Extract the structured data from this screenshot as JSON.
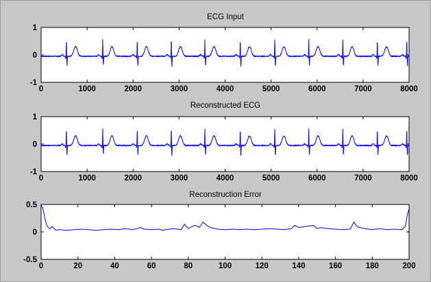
{
  "chart_data": [
    {
      "type": "line",
      "title": "ECG Input",
      "xlabel": "",
      "ylabel": "",
      "xlim": [
        0,
        8000
      ],
      "ylim": [
        -1,
        1
      ],
      "xticks": [
        "0",
        "1000",
        "2000",
        "3000",
        "4000",
        "5000",
        "6000",
        "7000",
        "8000"
      ],
      "yticks": [
        "1",
        "0",
        "-1"
      ],
      "grid": false,
      "line_color": "#0000ff",
      "series": [
        {
          "beat_x": [
            550,
            1340,
            2090,
            2830,
            3560,
            4330,
            5080,
            5820,
            6560,
            7310,
            7950
          ],
          "r_peak": 0.55,
          "s_trough": -0.4,
          "t_wave": 0.3,
          "baseline": -0.05
        }
      ]
    },
    {
      "type": "line",
      "title": "Reconstructed ECG",
      "xlabel": "",
      "ylabel": "",
      "xlim": [
        0,
        8000
      ],
      "ylim": [
        -1,
        1
      ],
      "xticks": [
        "0",
        "1000",
        "2000",
        "3000",
        "4000",
        "5000",
        "6000",
        "7000",
        "8000"
      ],
      "yticks": [
        "1",
        "0",
        "-1"
      ],
      "grid": false,
      "line_color": "#0000ff",
      "series": [
        {
          "beat_x": [
            550,
            1340,
            2090,
            2830,
            3560,
            4330,
            5080,
            5820,
            6560,
            7310,
            7950
          ],
          "r_peak": 0.55,
          "s_trough": -0.4,
          "t_wave": 0.3,
          "baseline": -0.05
        }
      ]
    },
    {
      "type": "line",
      "title": "Reconstruction Error",
      "xlabel": "",
      "ylabel": "",
      "xlim": [
        0,
        200
      ],
      "ylim": [
        -0.5,
        0.5
      ],
      "xticks": [
        "0",
        "20",
        "40",
        "60",
        "80",
        "100",
        "120",
        "140",
        "160",
        "180",
        "200"
      ],
      "yticks": [
        "0.5",
        "0",
        "-0.5"
      ],
      "grid": false,
      "line_color": "#0000ff",
      "series": [
        {
          "x": [
            0,
            1,
            2,
            3,
            4,
            5,
            6,
            8,
            10,
            14,
            18,
            22,
            26,
            30,
            34,
            38,
            42,
            46,
            50,
            54,
            56,
            60,
            64,
            66,
            68,
            72,
            76,
            78,
            80,
            82,
            84,
            86,
            88,
            90,
            92,
            96,
            100,
            104,
            108,
            112,
            116,
            120,
            124,
            128,
            132,
            136,
            138,
            140,
            144,
            148,
            150,
            152,
            156,
            160,
            164,
            168,
            170,
            172,
            176,
            180,
            184,
            188,
            192,
            196,
            198,
            199,
            200
          ],
          "y": [
            0.5,
            0.42,
            0.25,
            0.12,
            0.08,
            0.06,
            0.1,
            0.03,
            0.04,
            0.03,
            0.04,
            0.05,
            0.04,
            0.03,
            0.04,
            0.05,
            0.04,
            0.06,
            0.04,
            0.08,
            0.05,
            0.04,
            0.05,
            0.03,
            0.04,
            0.06,
            0.04,
            0.14,
            0.06,
            0.1,
            0.12,
            0.08,
            0.18,
            0.12,
            0.08,
            0.05,
            0.04,
            0.05,
            0.04,
            0.05,
            0.04,
            0.05,
            0.06,
            0.05,
            0.04,
            0.06,
            0.12,
            0.08,
            0.1,
            0.12,
            0.06,
            0.08,
            0.06,
            0.05,
            0.04,
            0.05,
            0.18,
            0.09,
            0.06,
            0.04,
            0.06,
            0.04,
            0.05,
            0.04,
            0.1,
            0.3,
            0.42
          ]
        }
      ]
    }
  ]
}
